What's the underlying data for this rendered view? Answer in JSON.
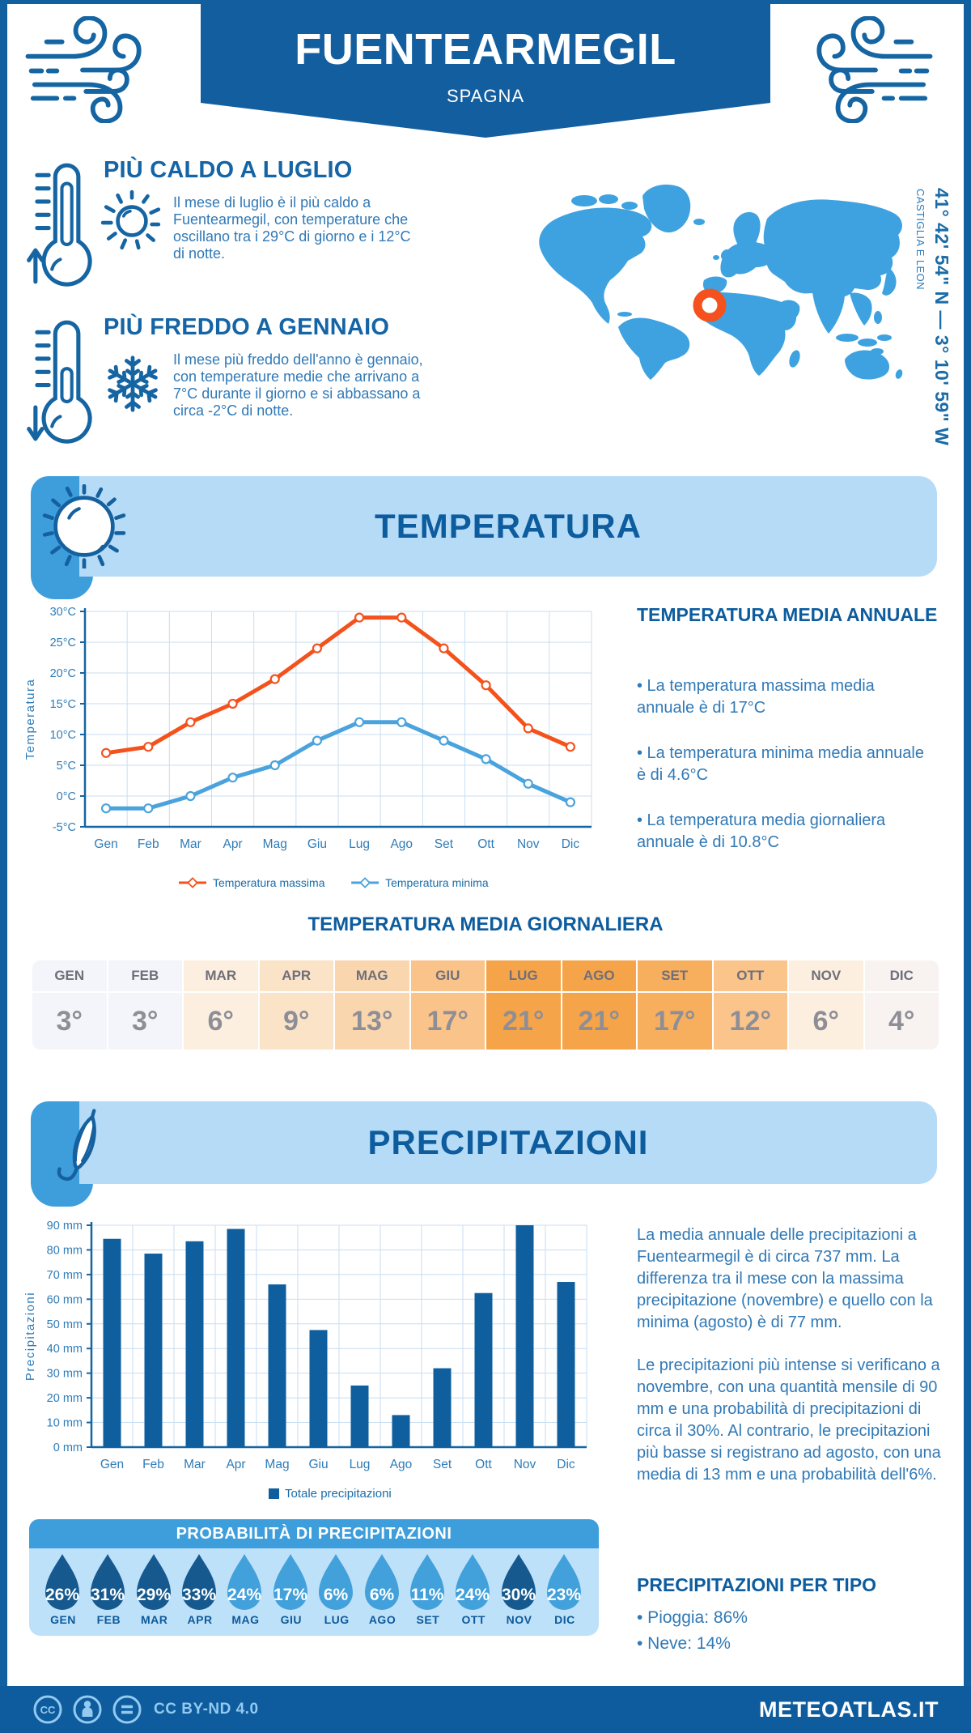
{
  "header": {
    "title": "FUENTEARMEGIL",
    "subtitle": "SPAGNA"
  },
  "location": {
    "coordinates": "41° 42' 54\" N — 3° 10' 59\" W",
    "region": "CASTIGLIA E LEON"
  },
  "highlights": {
    "hot": {
      "title": "PIÙ CALDO A LUGLIO",
      "text": "Il mese di luglio è il più caldo a Fuentearmegil, con temperature che oscillano tra i 29°C di giorno e i 12°C di notte."
    },
    "cold": {
      "title": "PIÙ FREDDO A GENNAIO",
      "text": "Il mese più freddo dell'anno è gennaio, con temperature medie che arrivano a 7°C durante il giorno e si abbassano a circa -2°C di notte."
    }
  },
  "temperature_section": {
    "banner": "TEMPERATURA",
    "annual_title": "TEMPERATURA MEDIA ANNUALE",
    "annual_bullets": [
      "• La temperatura massima media annuale è di 17°C",
      "• La temperatura minima media annuale è di 4.6°C",
      "• La temperatura media giornaliera annuale è di 10.8°C"
    ],
    "daily_title": "TEMPERATURA MEDIA GIORNALIERA"
  },
  "precipitation_section": {
    "banner": "PRECIPITAZIONI",
    "text1": "La media annuale delle precipitazioni a Fuentearmegil è di circa 737 mm. La differenza tra il mese con la massima precipitazione (novembre) e quello con la minima (agosto) è di 77 mm.",
    "text2": "Le precipitazioni più intense si verificano a novembre, con una quantità mensile di 90 mm e una probabilità di precipitazioni di circa il 30%. Al contrario, le precipitazioni più basse si registrano ad agosto, con una media di 13 mm e una probabilità dell'6%.",
    "types_title": "PRECIPITAZIONI PER TIPO",
    "types_bullets": [
      "• Pioggia: 86%",
      "• Neve: 14%"
    ]
  },
  "footer": {
    "license": "CC BY-ND 4.0",
    "site": "METEOATLAS.IT"
  },
  "colors": {
    "primary": "#135E9E",
    "azure": "#3D9EDB",
    "pale": "#B5DBF7",
    "line_max": "#F4521D",
    "line_min": "#4AA3DD",
    "bar": "#0F5F9E",
    "marker_orange": "#F4511E",
    "tick_text": "#2E7CB8",
    "axis": "#1465A3",
    "grid": "#C8DEF0"
  },
  "chart_data": [
    {
      "type": "line",
      "categories": [
        "Gen",
        "Feb",
        "Mar",
        "Apr",
        "Mag",
        "Giu",
        "Lug",
        "Ago",
        "Set",
        "Ott",
        "Nov",
        "Dic"
      ],
      "series": [
        {
          "name": "Temperatura massima",
          "values": [
            7,
            8,
            12,
            15,
            19,
            24,
            29,
            29,
            24,
            18,
            11,
            8
          ]
        },
        {
          "name": "Temperatura minima",
          "values": [
            -2,
            -2,
            0,
            3,
            5,
            9,
            12,
            12,
            9,
            6,
            2,
            -1
          ]
        }
      ],
      "ylabel": "Temperatura",
      "ylim": [
        -5,
        30
      ],
      "ytick_step": 5,
      "ytick_suffix": "°C",
      "grid": true,
      "legend_position": "bottom"
    },
    {
      "type": "bar",
      "categories": [
        "Gen",
        "Feb",
        "Mar",
        "Apr",
        "Mag",
        "Giu",
        "Lug",
        "Ago",
        "Set",
        "Ott",
        "Nov",
        "Dic"
      ],
      "values": [
        84.5,
        78.5,
        83.5,
        88.5,
        66,
        47.5,
        25,
        13,
        32,
        62.5,
        90,
        67
      ],
      "legend": "Totale precipitazioni",
      "ylabel": "Precipitazioni",
      "ylim": [
        0,
        90
      ],
      "ytick_step": 10,
      "ytick_suffix": " mm",
      "grid": true,
      "legend_position": "bottom"
    },
    {
      "type": "table",
      "title": "TEMPERATURA MEDIA GIORNALIERA",
      "categories": [
        "GEN",
        "FEB",
        "MAR",
        "APR",
        "MAG",
        "GIU",
        "LUG",
        "AGO",
        "SET",
        "OTT",
        "NOV",
        "DIC"
      ],
      "values": [
        "3°",
        "3°",
        "6°",
        "9°",
        "13°",
        "17°",
        "21°",
        "21°",
        "17°",
        "12°",
        "6°",
        "4°"
      ],
      "cell_colors": [
        "#F4F4FB",
        "#F4F4FB",
        "#FCEFDF",
        "#FBE3C8",
        "#FAD6AE",
        "#FAC38A",
        "#F5A449",
        "#F5A449",
        "#F7AF5D",
        "#FAC48B",
        "#FCEFDF",
        "#F8F2F0"
      ]
    },
    {
      "type": "pictogram-drops",
      "title": "PROBABILITÀ DI PRECIPITAZIONI",
      "categories": [
        "GEN",
        "FEB",
        "MAR",
        "APR",
        "MAG",
        "GIU",
        "LUG",
        "AGO",
        "SET",
        "OTT",
        "NOV",
        "DIC"
      ],
      "values": [
        26,
        31,
        29,
        33,
        24,
        17,
        6,
        6,
        11,
        24,
        30,
        23
      ],
      "value_suffix": "%",
      "dark_flags": [
        true,
        true,
        true,
        true,
        false,
        false,
        false,
        false,
        false,
        false,
        true,
        false
      ],
      "drop_dark_color": "#16598F",
      "drop_light_color": "#42A0DB"
    }
  ]
}
